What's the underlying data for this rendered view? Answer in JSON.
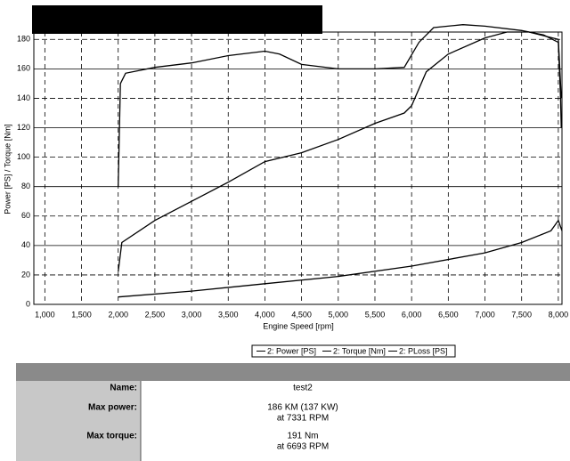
{
  "chart_data": {
    "type": "line",
    "xlabel": "Engine Speed [rpm]",
    "ylabel": "Power [PS] / Torque [Nm]",
    "xlim": [
      850,
      8050
    ],
    "ylim": [
      0,
      185
    ],
    "xticks": [
      {
        "value": 1000,
        "label": "1,000"
      },
      {
        "value": 1500,
        "label": "1,500"
      },
      {
        "value": 2000,
        "label": "2,000"
      },
      {
        "value": 2500,
        "label": "2,500"
      },
      {
        "value": 3000,
        "label": "3,000"
      },
      {
        "value": 3500,
        "label": "3,500"
      },
      {
        "value": 4000,
        "label": "4,000"
      },
      {
        "value": 4500,
        "label": "4,500"
      },
      {
        "value": 5000,
        "label": "5,000"
      },
      {
        "value": 5500,
        "label": "5,500"
      },
      {
        "value": 6000,
        "label": "6,000"
      },
      {
        "value": 6500,
        "label": "6,500"
      },
      {
        "value": 7000,
        "label": "7,000"
      },
      {
        "value": 7500,
        "label": "7,500"
      },
      {
        "value": 8000,
        "label": "8,000"
      }
    ],
    "yticks": [
      0,
      20,
      40,
      60,
      80,
      100,
      120,
      140,
      160,
      180
    ],
    "grid": true,
    "series": [
      {
        "name": "2: Power [PS]",
        "color": "#000000",
        "x": [
          2000,
          2050,
          2500,
          3000,
          3500,
          4000,
          4500,
          5000,
          5500,
          5900,
          6000,
          6200,
          6500,
          7000,
          7300,
          7600,
          8000,
          8040
        ],
        "values": [
          22,
          42,
          57,
          70,
          83,
          97,
          103,
          112,
          123,
          130,
          135,
          158,
          170,
          181,
          185,
          185,
          180,
          140
        ]
      },
      {
        "name": "2: Torque [Nm]",
        "color": "#000000",
        "x": [
          2000,
          2030,
          2100,
          2500,
          3000,
          3500,
          4000,
          4200,
          4500,
          5000,
          5500,
          5900,
          6100,
          6300,
          6700,
          7000,
          7500,
          7800,
          8000,
          8030,
          8040
        ],
        "values": [
          80,
          150,
          157,
          161,
          164,
          169,
          172,
          170,
          163,
          160,
          160,
          161,
          178,
          188,
          190,
          189,
          186,
          183,
          178,
          140,
          120
        ]
      },
      {
        "name": "2: PLoss [PS]",
        "color": "#000000",
        "x": [
          2000,
          3000,
          4000,
          5000,
          6000,
          7000,
          7500,
          7900,
          8000,
          8050
        ],
        "values": [
          5,
          9,
          14,
          19,
          26,
          35,
          42,
          50,
          57,
          50
        ]
      }
    ]
  },
  "table": {
    "rows": [
      {
        "label": "Name:",
        "lines": [
          "test2"
        ]
      },
      {
        "label": "Max power:",
        "lines": [
          "186 KM (137 KW)",
          "at 7331 RPM"
        ]
      },
      {
        "label": "Max torque:",
        "lines": [
          "191 Nm",
          "at 6693 RPM"
        ]
      }
    ]
  }
}
